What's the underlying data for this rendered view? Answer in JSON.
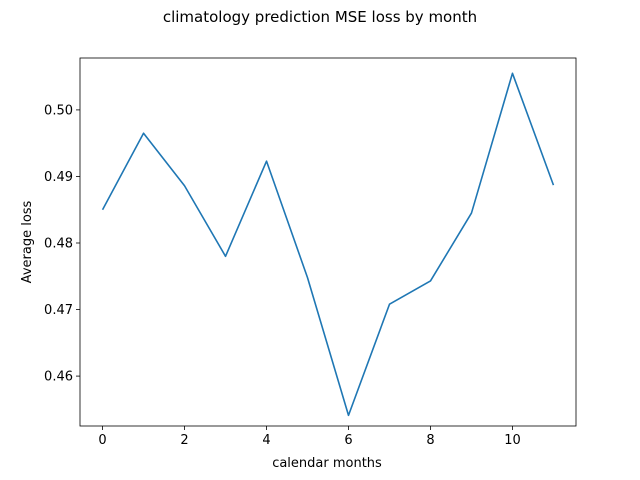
{
  "chart_data": {
    "type": "line",
    "title": "climatology prediction MSE loss by month",
    "xlabel": "calendar months",
    "ylabel": "Average loss",
    "xlim": [
      -0.55,
      11.55
    ],
    "ylim": [
      0.4525,
      0.5078
    ],
    "xticks": [
      0,
      2,
      4,
      6,
      8,
      10
    ],
    "xtick_labels": [
      "0",
      "2",
      "4",
      "6",
      "8",
      "10"
    ],
    "yticks": [
      0.46,
      0.47,
      0.48,
      0.49,
      0.5
    ],
    "ytick_labels": [
      "0.46",
      "0.47",
      "0.48",
      "0.49",
      "0.50"
    ],
    "grid": false,
    "legend": "none",
    "series": [
      {
        "color": "#1f77b4",
        "x": [
          0,
          1,
          2,
          3,
          4,
          5,
          6,
          7,
          8,
          9,
          10,
          11
        ],
        "y": [
          0.485,
          0.4965,
          0.4886,
          0.478,
          0.4923,
          0.4748,
          0.4541,
          0.4708,
          0.4743,
          0.4845,
          0.5055,
          0.4887
        ]
      }
    ]
  }
}
